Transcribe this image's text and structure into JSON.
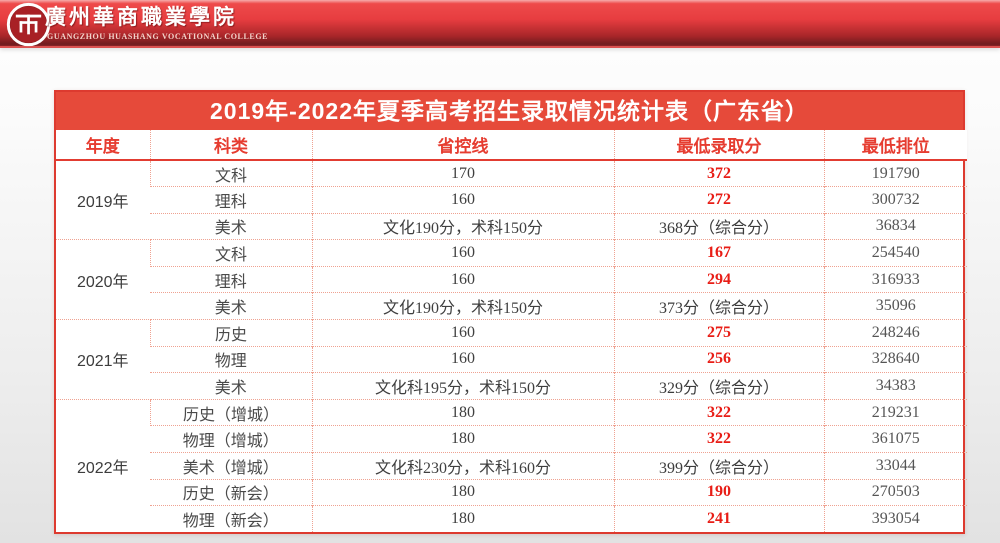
{
  "banner": {
    "college_name_zh": "廣州華商職業學院",
    "college_name_en": "GUANGZHOU HUASHANG VOCATIONAL COLLEGE"
  },
  "table": {
    "title": "2019年-2022年夏季高考招生录取情况统计表（广东省）",
    "columns": [
      "年度",
      "科类",
      "省控线",
      "最低录取分",
      "最低排位"
    ],
    "groups": [
      {
        "year": "2019年",
        "rows": [
          {
            "category": "文科",
            "control_line": "170",
            "min_score": "372",
            "min_score_red": true,
            "min_rank": "191790"
          },
          {
            "category": "理科",
            "control_line": "160",
            "min_score": "272",
            "min_score_red": true,
            "min_rank": "300732"
          },
          {
            "category": "美术",
            "control_line": "文化190分，术科150分",
            "min_score": "368分（综合分）",
            "min_score_red": false,
            "min_rank": "36834"
          }
        ]
      },
      {
        "year": "2020年",
        "rows": [
          {
            "category": "文科",
            "control_line": "160",
            "min_score": "167",
            "min_score_red": true,
            "min_rank": "254540"
          },
          {
            "category": "理科",
            "control_line": "160",
            "min_score": "294",
            "min_score_red": true,
            "min_rank": "316933"
          },
          {
            "category": "美术",
            "control_line": "文化190分，术科150分",
            "min_score": "373分（综合分）",
            "min_score_red": false,
            "min_rank": "35096"
          }
        ]
      },
      {
        "year": "2021年",
        "rows": [
          {
            "category": "历史",
            "control_line": "160",
            "min_score": "275",
            "min_score_red": true,
            "min_rank": "248246"
          },
          {
            "category": "物理",
            "control_line": "160",
            "min_score": "256",
            "min_score_red": true,
            "min_rank": "328640"
          },
          {
            "category": "美术",
            "control_line": "文化科195分，术科150分",
            "min_score": "329分（综合分）",
            "min_score_red": false,
            "min_rank": "34383"
          }
        ]
      },
      {
        "year": "2022年",
        "rows": [
          {
            "category": "历史（增城）",
            "control_line": "180",
            "min_score": "322",
            "min_score_red": true,
            "min_rank": "219231"
          },
          {
            "category": "物理（增城）",
            "control_line": "180",
            "min_score": "322",
            "min_score_red": true,
            "min_rank": "361075"
          },
          {
            "category": "美术（增城）",
            "control_line": "文化科230分，术科160分",
            "min_score": "399分（综合分）",
            "min_score_red": false,
            "min_rank": "33044"
          },
          {
            "category": "历史（新会）",
            "control_line": "180",
            "min_score": "190",
            "min_score_red": true,
            "min_rank": "270503"
          },
          {
            "category": "物理（新会）",
            "control_line": "180",
            "min_score": "241",
            "min_score_red": true,
            "min_rank": "393054"
          }
        ]
      }
    ]
  },
  "colors": {
    "banner_red_top": "#ee4a4a",
    "banner_red_bottom": "#701b1e",
    "title_bar_red": "#e64a3a",
    "border_red": "#dd3a2f",
    "dotted_line": "#efa291",
    "header_text_red": "#e63c30",
    "score_red": "#e81d16",
    "cell_text": "#4a4a4a",
    "page_bg": "#e2e2e2"
  }
}
